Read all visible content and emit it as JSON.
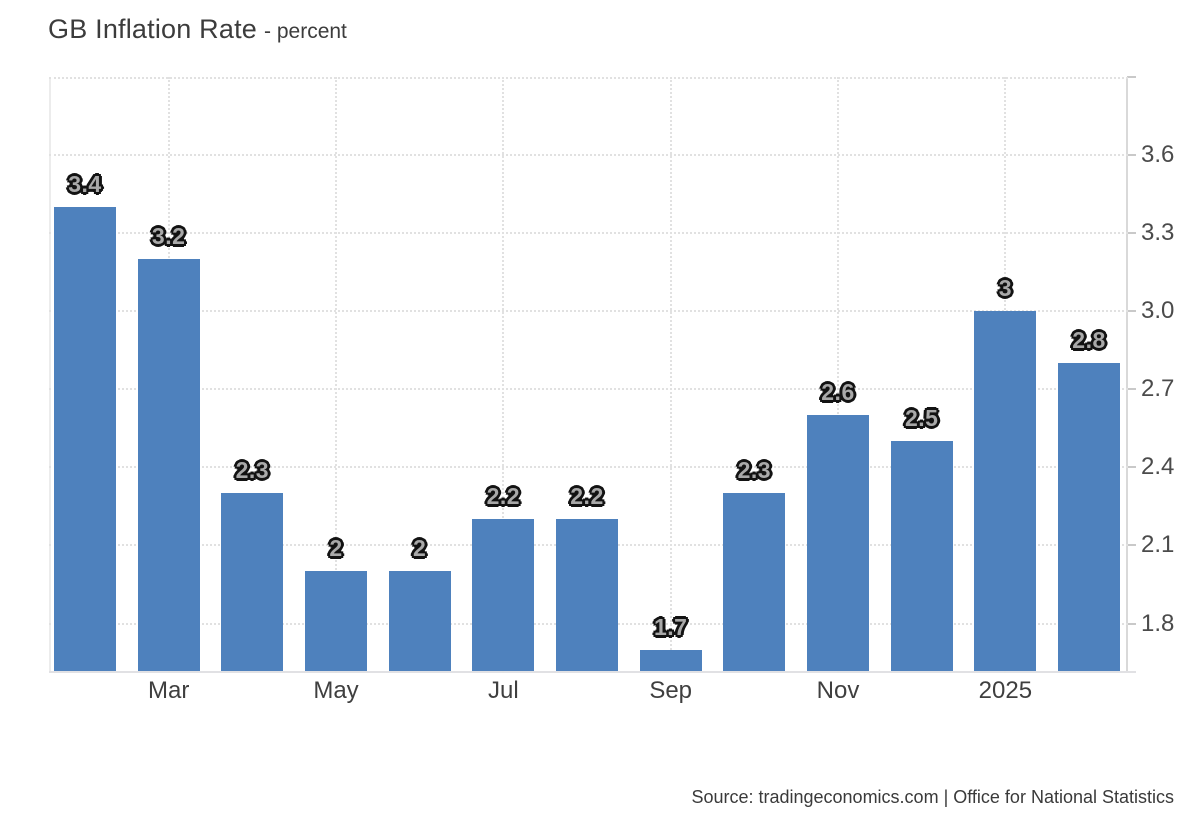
{
  "header": {
    "title": "GB Inflation Rate",
    "subtitle": "- percent"
  },
  "chart_data": {
    "type": "bar",
    "title": "GB Inflation Rate",
    "unit": "percent",
    "values": [
      3.4,
      3.2,
      2.3,
      2,
      2,
      2.2,
      2.2,
      1.7,
      2.3,
      2.6,
      2.5,
      3,
      2.8
    ],
    "value_labels": [
      "3.4",
      "3.2",
      "2.3",
      "2",
      "2",
      "2.2",
      "2.2",
      "1.7",
      "2.3",
      "2.6",
      "2.5",
      "3",
      "2.8"
    ],
    "x_tick_labels": [
      "Mar",
      "May",
      "Jul",
      "Sep",
      "Nov",
      "2025"
    ],
    "x_tick_bar_indices": [
      1,
      3,
      5,
      7,
      9,
      11
    ],
    "y_tick_labels": [
      "3.6",
      "3.3",
      "3.0",
      "2.7",
      "2.4",
      "2.1",
      "1.8"
    ],
    "y_tick_values": [
      3.6,
      3.3,
      3.0,
      2.7,
      2.4,
      2.1,
      1.8
    ],
    "y_gridline_values": [
      3.9,
      3.6,
      3.3,
      3.0,
      2.7,
      2.4,
      2.1,
      1.8
    ],
    "ylim": [
      1.61,
      3.9
    ],
    "grid_style": "dotted",
    "legend_position": "none",
    "bar_color": "#4e81bd"
  },
  "footer": {
    "source": "Source: tradingeconomics.com | Office for National Statistics"
  }
}
